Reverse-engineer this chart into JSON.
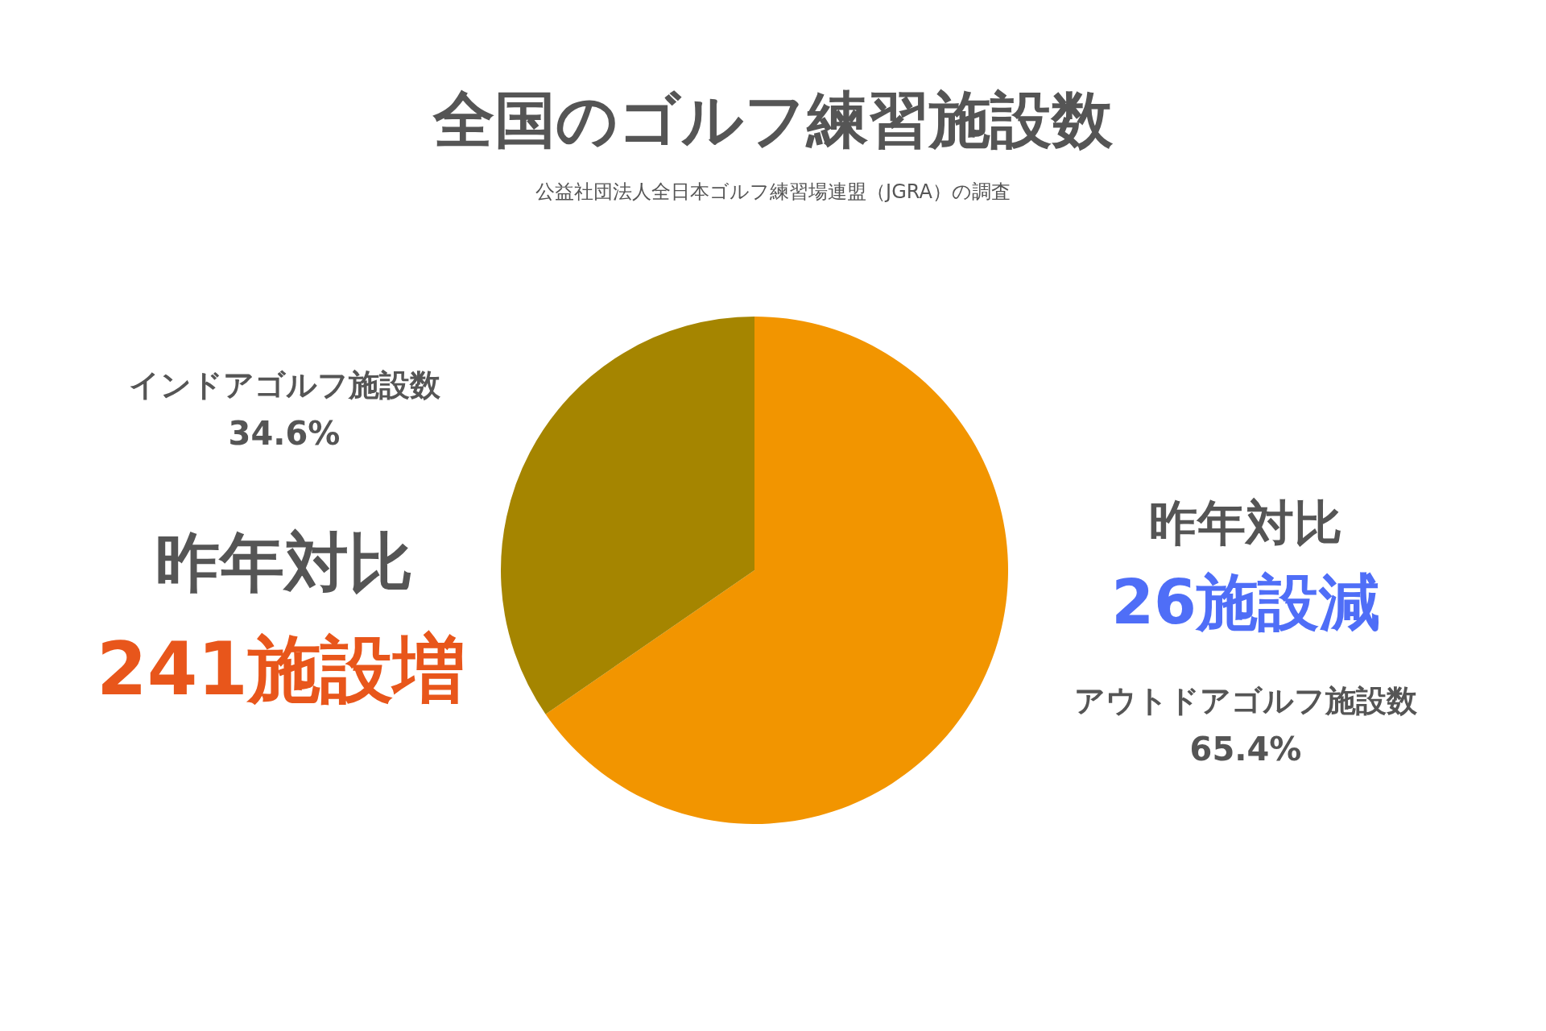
{
  "chart_data": {
    "type": "pie",
    "title": "全国のゴルフ練習施設数",
    "subtitle": "公益社団法人全日本ゴルフ練習場連盟（JGRA）の調査",
    "categories": [
      "アウトドアゴルフ施設数",
      "インドアゴルフ施設数"
    ],
    "values": [
      65.4,
      34.6
    ],
    "colors": [
      "#f29500",
      "#a58500"
    ],
    "value_labels": [
      "65.4%",
      "34.6%"
    ],
    "annotations": [
      "昨年対比",
      "241施設増",
      "昨年対比",
      "26施設減"
    ],
    "legend": false
  }
}
